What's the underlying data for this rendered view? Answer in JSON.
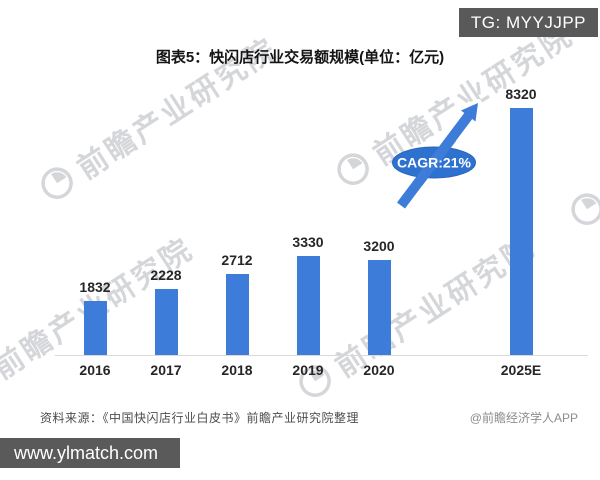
{
  "badges": {
    "tg": "TG: MYYJJPP",
    "site": "www.ylmatch.com"
  },
  "title": "图表5：快闪店行业交易额规模(单位：亿元)",
  "chart_data": {
    "type": "bar",
    "categories": [
      "2016",
      "2017",
      "2018",
      "2019",
      "2020",
      "2025E"
    ],
    "values": [
      1832,
      2228,
      2712,
      3330,
      3200,
      8320
    ],
    "title": "图表5：快闪店行业交易额规模(单位：亿元)",
    "unit": "亿元",
    "ylim": [
      0,
      8800
    ],
    "grid": false,
    "legend": false,
    "bar_color": "#3d7dd9",
    "annotation": {
      "label": "CAGR:21%",
      "shape": "ellipse-with-arrow",
      "color": "#2e72d0",
      "text_color": "#ffffff"
    }
  },
  "footer": {
    "source": "资料来源：《中国快闪店行业白皮书》前瞻产业研究院整理",
    "credit": "@前瞻经济学人APP"
  },
  "watermark": {
    "text": "前瞻产业研究院"
  },
  "colors": {
    "bar": "#3d7dd9",
    "annotation": "#2e72d0",
    "badge_bg": "#595959",
    "axis": "#d9d9d9"
  }
}
